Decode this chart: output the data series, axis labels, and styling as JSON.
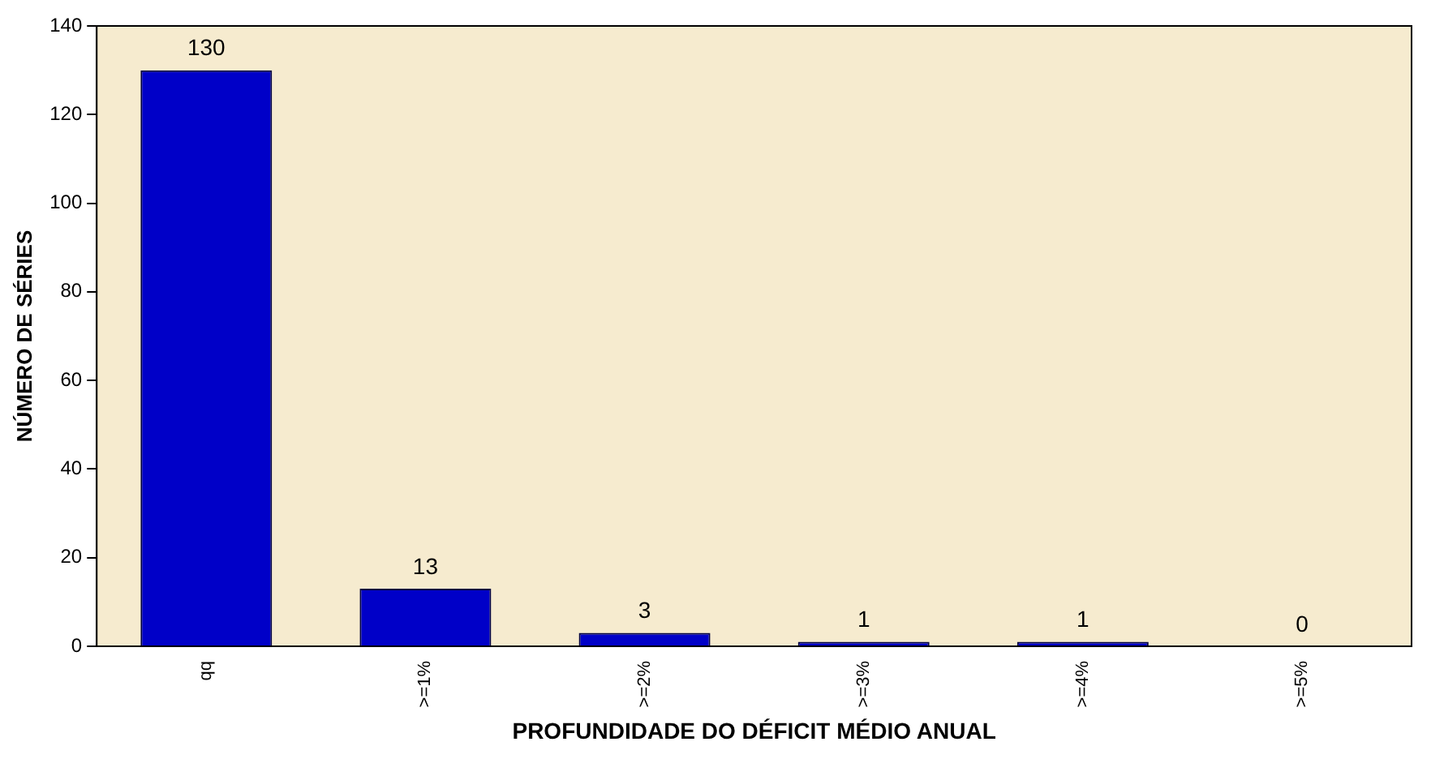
{
  "chart_data": {
    "type": "bar",
    "xlabel": "PROFUNDIDADE DO DÉFICIT MÉDIO ANUAL",
    "ylabel": "NÚMERO DE SÉRIES",
    "categories": [
      "qq",
      ">=1%",
      ">=2%",
      ">=3%",
      ">=4%",
      ">=5%"
    ],
    "values": [
      130,
      13,
      3,
      1,
      1,
      0
    ],
    "color": "#0000c8",
    "ylim": [
      0,
      140
    ],
    "yticks": [
      0,
      20,
      40,
      60,
      80,
      100,
      120,
      140
    ],
    "grid": false,
    "legend": false,
    "data_labels": true
  }
}
